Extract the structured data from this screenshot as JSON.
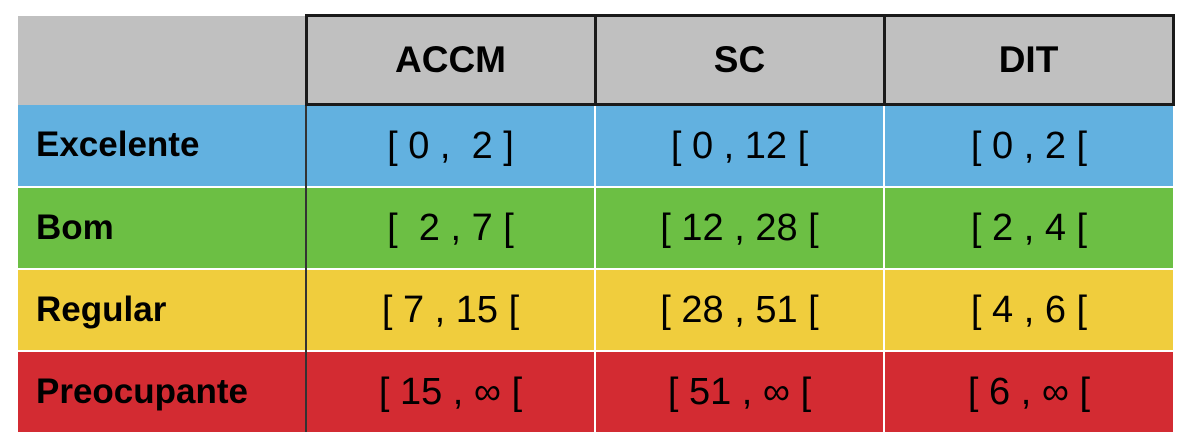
{
  "header": {
    "columns": [
      "ACCM",
      "SC",
      "DIT"
    ]
  },
  "rows": [
    {
      "label": "Excelente",
      "color": "#62b1e0",
      "values": [
        "[ 0 ,  2 ]",
        "[ 0 , 12 [",
        "[ 0 , 2 ["
      ]
    },
    {
      "label": "Bom",
      "color": "#6cbf44",
      "values": [
        "[  2 , 7 [",
        "[ 12 , 28 [",
        "[ 2 , 4 ["
      ]
    },
    {
      "label": "Regular",
      "color": "#f0cd3d",
      "values": [
        "[ 7 , 15 [",
        "[ 28 , 51 [",
        "[ 4 , 6 ["
      ]
    },
    {
      "label": "Preocupante",
      "color": "#d32b32",
      "values": [
        "[ 15 , ∞ [",
        "[ 51 , ∞ [",
        "[ 6 , ∞ ["
      ]
    }
  ]
}
